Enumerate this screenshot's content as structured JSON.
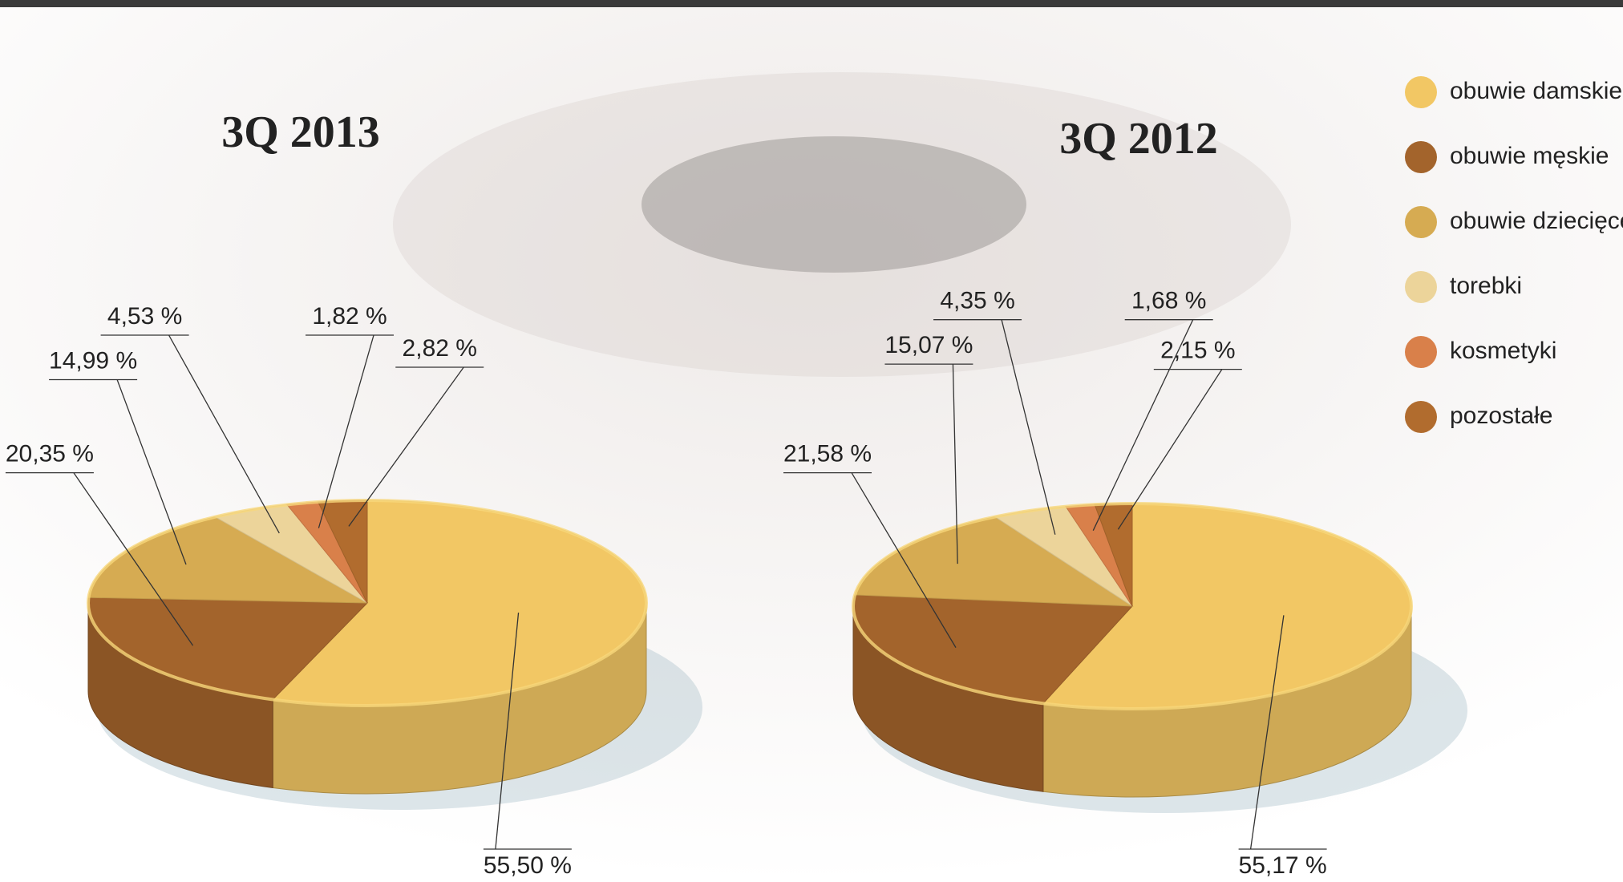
{
  "chart_data": [
    {
      "type": "pie",
      "title": "3Q 2013",
      "values": [
        55.5,
        20.35,
        14.99,
        4.53,
        1.82,
        2.82
      ],
      "value_labels": [
        "55,50 %",
        "20,35 %",
        "14,99 %",
        "4,53 %",
        "1,82 %",
        "2,82 %"
      ]
    },
    {
      "type": "pie",
      "title": "3Q 2012",
      "values": [
        55.17,
        21.58,
        15.07,
        4.35,
        1.68,
        2.15
      ],
      "value_labels": [
        "55,17 %",
        "21,58 %",
        "15,07 %",
        "4,35 %",
        "1,68 %",
        "2,15 %"
      ]
    }
  ],
  "legend": {
    "labels": [
      "obuwie damskie",
      "obuwie męskie",
      "obuwie dziecięce",
      "torebki",
      "kosmetyki",
      "pozostałe"
    ],
    "colors": [
      "#f2c764",
      "#a3642c",
      "#d6ab52",
      "#ecd49a",
      "#d9804a",
      "#b16c2e"
    ]
  }
}
